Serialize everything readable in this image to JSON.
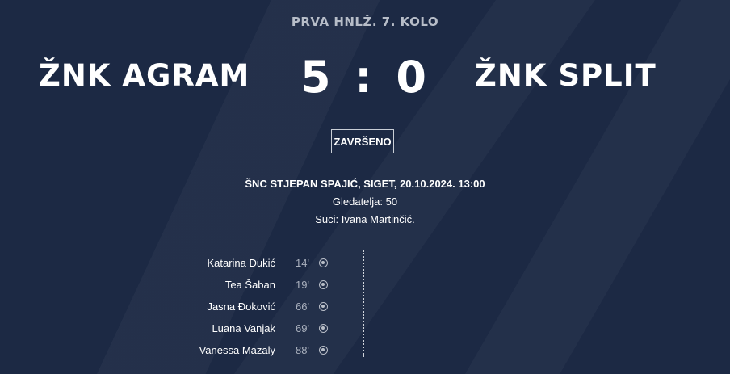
{
  "league": "PRVA HNLŽ. 7. KOLO",
  "home_team": "ŽNK AGRAM",
  "away_team": "ŽNK SPLIT",
  "score": {
    "home": "5",
    "separator": ":",
    "away": "0"
  },
  "status": "ZAVRŠENO",
  "venue": "ŠNC STJEPAN SPAJIĆ, SIGET, 20.10.2024. 13:00",
  "attendance": "Gledatelja: 50",
  "referees": "Suci: Ivana Martinčić.",
  "goals": [
    {
      "player": "Katarina Đukić",
      "minute": "14'",
      "icon": "ball-icon"
    },
    {
      "player": "Tea Šaban",
      "minute": "19'",
      "icon": "ball-icon"
    },
    {
      "player": "Jasna Đoković",
      "minute": "66'",
      "icon": "ball-icon"
    },
    {
      "player": "Luana Vanjak",
      "minute": "69'",
      "icon": "ball-icon"
    },
    {
      "player": "Vanessa Mazaly",
      "minute": "88'",
      "icon": "ball-icon"
    }
  ]
}
